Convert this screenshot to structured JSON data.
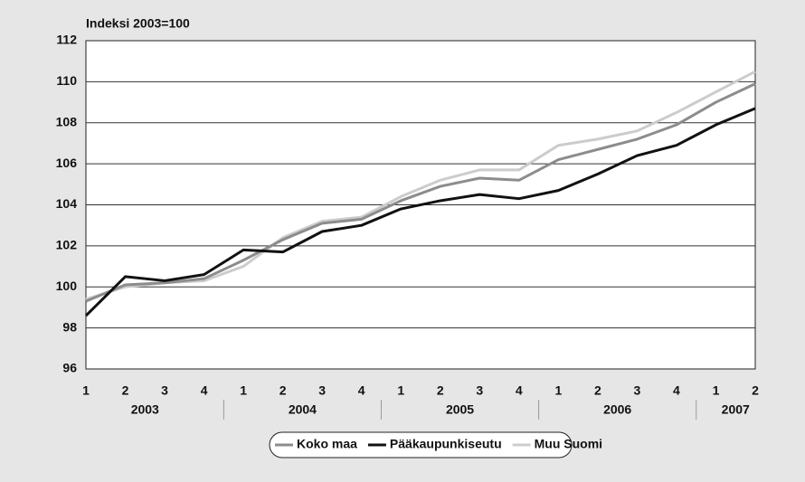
{
  "chart_data": {
    "type": "line",
    "ylabel": "Indeksi 2003=100",
    "categories": [
      "1",
      "2",
      "3",
      "4",
      "1",
      "2",
      "3",
      "4",
      "1",
      "2",
      "3",
      "4",
      "1",
      "2",
      "3",
      "4",
      "1",
      "2"
    ],
    "x_groups": [
      {
        "label": "2003",
        "count": 4
      },
      {
        "label": "2004",
        "count": 4
      },
      {
        "label": "2005",
        "count": 4
      },
      {
        "label": "2006",
        "count": 4
      },
      {
        "label": "2007",
        "count": 2
      }
    ],
    "series": [
      {
        "name": "Koko maa",
        "color": "#8c8c8c",
        "values": [
          99.3,
          100.1,
          100.2,
          100.4,
          101.3,
          102.3,
          103.1,
          103.3,
          104.2,
          104.9,
          105.3,
          105.2,
          106.2,
          106.7,
          107.2,
          107.9,
          109.0,
          109.9
        ]
      },
      {
        "name": "Pääkaupunkiseutu",
        "color": "#111111",
        "values": [
          98.6,
          100.5,
          100.3,
          100.6,
          101.8,
          101.7,
          102.7,
          103.0,
          103.8,
          104.2,
          104.5,
          104.3,
          104.7,
          105.5,
          106.4,
          106.9,
          107.9,
          108.7
        ]
      },
      {
        "name": "Muu Suomi",
        "color": "#cccccc",
        "values": [
          99.4,
          100.0,
          100.2,
          100.3,
          101.0,
          102.4,
          103.2,
          103.4,
          104.4,
          105.2,
          105.7,
          105.7,
          106.9,
          107.2,
          107.6,
          108.5,
          109.5,
          110.5
        ]
      }
    ],
    "ylim": [
      96,
      112
    ],
    "yticks": [
      96,
      98,
      100,
      102,
      104,
      106,
      108,
      110,
      112
    ],
    "grid": true,
    "legend": "bottom"
  }
}
